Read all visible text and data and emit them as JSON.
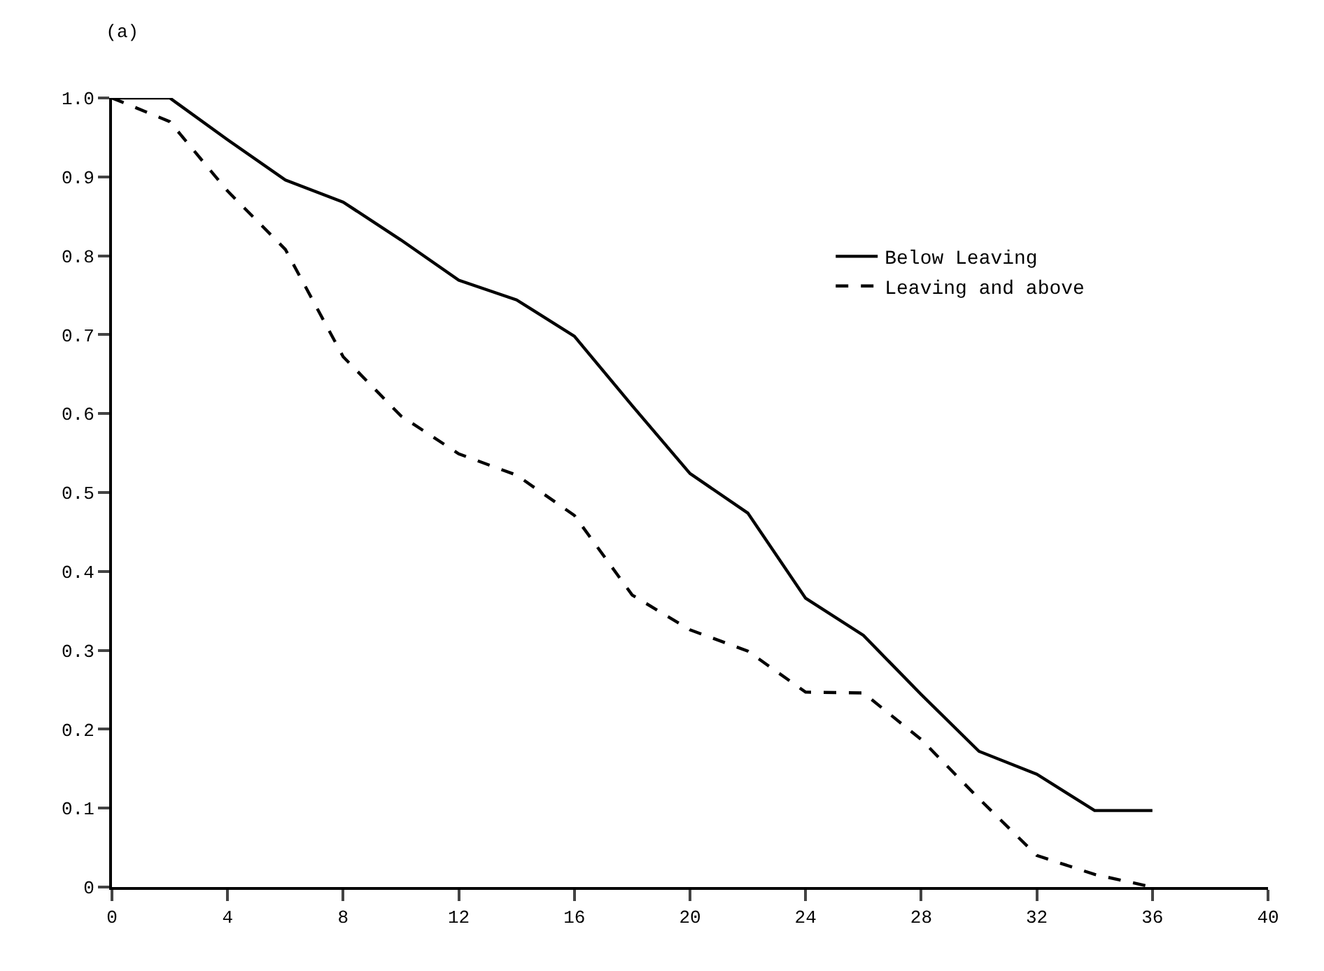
{
  "chart_data": {
    "type": "line",
    "title": "(a)",
    "x": [
      0,
      2,
      4,
      6,
      8,
      10,
      12,
      14,
      16,
      18,
      20,
      22,
      24,
      26,
      28,
      30,
      32,
      34,
      36
    ],
    "series": [
      {
        "name": "Below Leaving",
        "color": "#000000",
        "line_style": "solid",
        "values": [
          1.0,
          1.0,
          0.947,
          0.896,
          0.868,
          0.82,
          0.769,
          0.744,
          0.698,
          0.61,
          0.524,
          0.474,
          0.366,
          0.319,
          0.244,
          0.172,
          0.143,
          0.097,
          0.097
        ]
      },
      {
        "name": "Leaving and above",
        "color": "#000000",
        "line_style": "dashed",
        "values": [
          1.0,
          0.97,
          0.882,
          0.808,
          0.672,
          0.597,
          0.549,
          0.522,
          0.471,
          0.37,
          0.326,
          0.299,
          0.247,
          0.246,
          0.187,
          0.112,
          0.04,
          0.016,
          0.0
        ]
      }
    ],
    "xlim": [
      0,
      40
    ],
    "xticks": [
      0,
      4,
      8,
      12,
      16,
      20,
      24,
      28,
      32,
      36,
      40
    ],
    "ylim": [
      0,
      1
    ],
    "yticks": [
      0,
      0.1,
      0.2,
      0.3,
      0.4,
      0.5,
      0.6,
      0.7,
      0.8,
      0.9,
      {
        "value": 1,
        "label": "1.0"
      }
    ],
    "legend": "right",
    "marker": "none"
  }
}
